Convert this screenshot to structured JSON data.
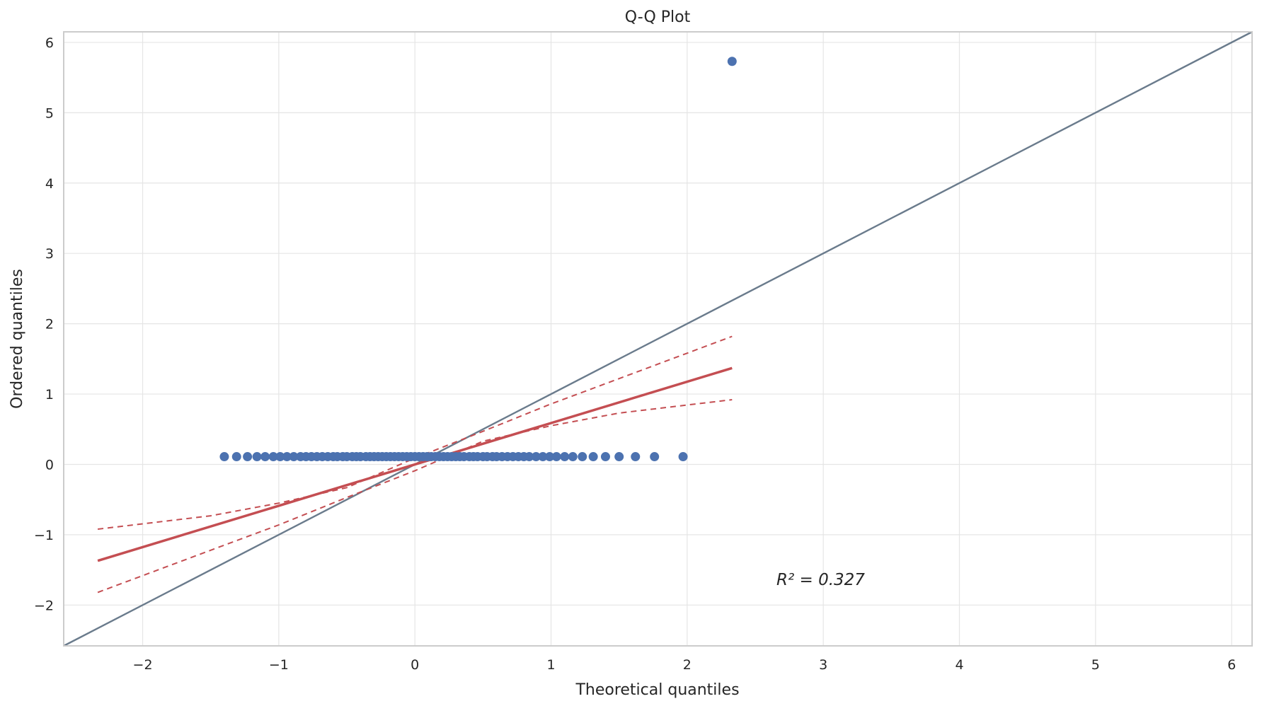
{
  "chart_data": {
    "type": "scatter",
    "title": "Q-Q Plot",
    "xlabel": "Theoretical quantiles",
    "ylabel": "Ordered quantiles",
    "xlim": [
      -2.58,
      6.15
    ],
    "ylim": [
      -2.58,
      6.15
    ],
    "xticks": [
      -2,
      -1,
      0,
      1,
      2,
      3,
      4,
      5,
      6
    ],
    "xtick_labels": [
      "−2",
      "−1",
      "0",
      "1",
      "2",
      "3",
      "4",
      "5",
      "6"
    ],
    "yticks": [
      -2,
      -1,
      0,
      1,
      2,
      3,
      4,
      5,
      6
    ],
    "ytick_labels": [
      "−2",
      "−1",
      "0",
      "1",
      "2",
      "3",
      "4",
      "5",
      "6"
    ],
    "grid": true,
    "annotation": "R² = 0.327",
    "points": {
      "x": [
        -1.4,
        -1.31,
        -1.23,
        -1.16,
        -1.1,
        -1.04,
        -0.99,
        -0.94,
        -0.89,
        -0.84,
        -0.8,
        -0.76,
        -0.72,
        -0.68,
        -0.64,
        -0.6,
        -0.57,
        -0.53,
        -0.5,
        -0.46,
        -0.43,
        -0.4,
        -0.36,
        -0.33,
        -0.3,
        -0.27,
        -0.24,
        -0.21,
        -0.18,
        -0.15,
        -0.12,
        -0.09,
        -0.06,
        -0.03,
        0.0,
        0.03,
        0.06,
        0.09,
        0.12,
        0.15,
        0.18,
        0.21,
        0.24,
        0.27,
        0.3,
        0.33,
        0.36,
        0.4,
        0.43,
        0.46,
        0.5,
        0.53,
        0.57,
        0.6,
        0.64,
        0.68,
        0.72,
        0.76,
        0.8,
        0.84,
        0.89,
        0.94,
        0.99,
        1.04,
        1.1,
        1.16,
        1.23,
        1.31,
        1.4,
        1.5,
        1.62,
        1.76,
        1.97,
        2.33
      ],
      "y": [
        0.11,
        0.11,
        0.11,
        0.11,
        0.11,
        0.11,
        0.11,
        0.11,
        0.11,
        0.11,
        0.11,
        0.11,
        0.11,
        0.11,
        0.11,
        0.11,
        0.11,
        0.11,
        0.11,
        0.11,
        0.11,
        0.11,
        0.11,
        0.11,
        0.11,
        0.11,
        0.11,
        0.11,
        0.11,
        0.11,
        0.11,
        0.11,
        0.11,
        0.11,
        0.11,
        0.11,
        0.11,
        0.11,
        0.11,
        0.11,
        0.11,
        0.11,
        0.11,
        0.11,
        0.11,
        0.11,
        0.11,
        0.11,
        0.11,
        0.11,
        0.11,
        0.11,
        0.11,
        0.11,
        0.11,
        0.11,
        0.11,
        0.11,
        0.11,
        0.11,
        0.11,
        0.11,
        0.11,
        0.11,
        0.11,
        0.11,
        0.11,
        0.11,
        0.11,
        0.11,
        0.11,
        0.11,
        0.11,
        5.73
      ],
      "color": "#4c72b0"
    },
    "reference_line": {
      "x": [
        -2.58,
        6.15
      ],
      "y": [
        -2.58,
        6.15
      ],
      "color": "#6a7b8c"
    },
    "fit_line": {
      "x": [
        -2.33,
        2.33
      ],
      "y": [
        -1.37,
        1.37
      ],
      "color": "#c44e52"
    },
    "confidence_band_upper": {
      "x": [
        -2.33,
        -1.5,
        -1.0,
        -0.5,
        0.0,
        0.5,
        1.0,
        1.5,
        2.33
      ],
      "y": [
        -0.92,
        -0.73,
        -0.55,
        -0.33,
        0.09,
        0.47,
        0.86,
        1.22,
        1.82
      ],
      "color": "#c44e52"
    },
    "confidence_band_lower": {
      "x": [
        -2.33,
        -1.5,
        -1.0,
        -0.5,
        0.0,
        0.5,
        1.0,
        1.5,
        2.33
      ],
      "y": [
        -1.82,
        -1.22,
        -0.86,
        -0.47,
        -0.09,
        0.33,
        0.55,
        0.73,
        0.92
      ],
      "color": "#c44e52"
    },
    "colors": {
      "grid": "#e5e5e5",
      "spine": "#cccccc",
      "text": "#262626"
    }
  }
}
